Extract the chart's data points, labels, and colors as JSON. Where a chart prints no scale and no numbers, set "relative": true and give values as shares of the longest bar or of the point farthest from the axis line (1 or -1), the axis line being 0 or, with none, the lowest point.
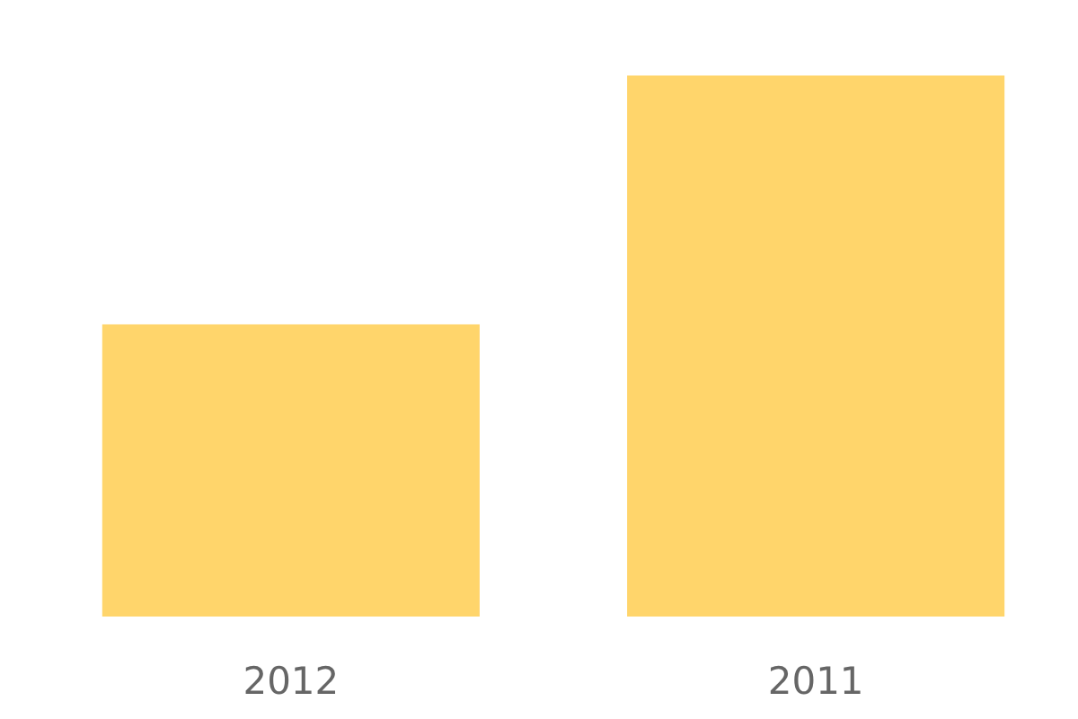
{
  "chart_data": {
    "type": "bar",
    "categories": [
      "2012",
      "2011"
    ],
    "values": [
      0.54,
      1
    ],
    "color": "#ffd56b",
    "relative": true
  }
}
